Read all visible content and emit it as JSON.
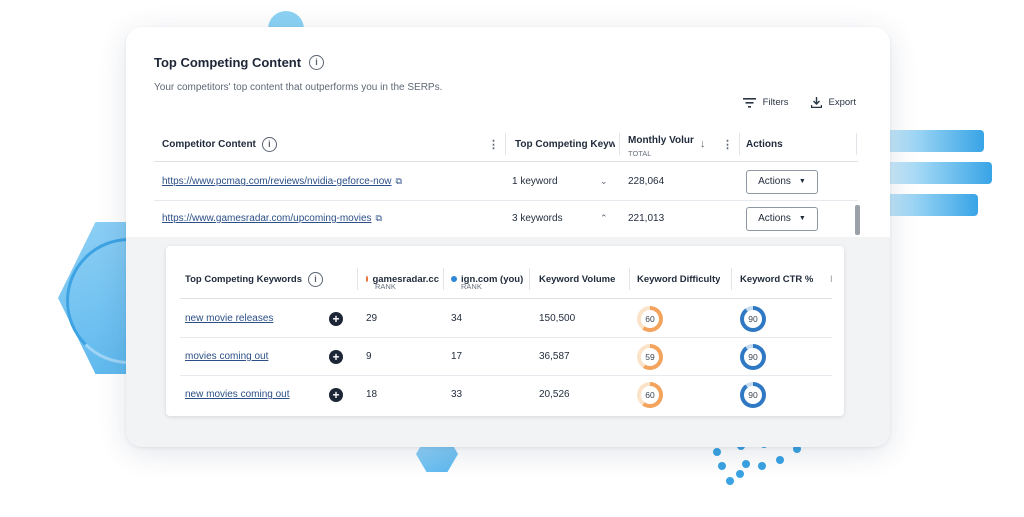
{
  "panel": {
    "title": "Top Competing Content",
    "subtitle": "Your competitors' top content that outperforms you in the SERPs.",
    "filters_label": "Filters",
    "export_label": "Export"
  },
  "table": {
    "headers": {
      "competitor_content": "Competitor Content",
      "top_keywords": "Top Competing Keywo",
      "monthly_volume": "Monthly Volur",
      "monthly_volume_sub": "TOTAL",
      "actions": "Actions"
    },
    "rows": [
      {
        "url": "https://www.pcmag.com/reviews/nvidia-geforce-now",
        "keywords": "1 keyword",
        "volume": "228,064",
        "action": "Actions"
      },
      {
        "url": "https://www.gamesradar.com/upcoming-movies",
        "keywords": "3 keywords",
        "volume": "221,013",
        "action": "Actions"
      }
    ]
  },
  "keywords_table": {
    "headers": {
      "keywords": "Top Competing Keywords",
      "comp1": "gamesradar.cc",
      "comp1_sub": "RANK",
      "comp2": "ign.com (you)",
      "comp2_sub": "RANK",
      "volume": "Keyword Volume",
      "difficulty": "Keyword Difficulty",
      "ctr": "Keyword CTR %",
      "extra": "I"
    },
    "colors": {
      "comp1": "#e8743b",
      "comp2": "#2e86d6"
    },
    "rows": [
      {
        "keyword": "new movie releases",
        "rank1": "29",
        "rank2": "34",
        "volume": "150,500",
        "difficulty": 60,
        "difficulty_label": "60",
        "ctr": 90,
        "ctr_label": "90"
      },
      {
        "keyword": "movies coming out",
        "rank1": "9",
        "rank2": "17",
        "volume": "36,587",
        "difficulty": 59,
        "difficulty_label": "59",
        "ctr": 90,
        "ctr_label": "90"
      },
      {
        "keyword": "new movies coming out",
        "rank1": "18",
        "rank2": "33",
        "volume": "20,526",
        "difficulty": 60,
        "difficulty_label": "60",
        "ctr": 90,
        "ctr_label": "90"
      }
    ]
  }
}
